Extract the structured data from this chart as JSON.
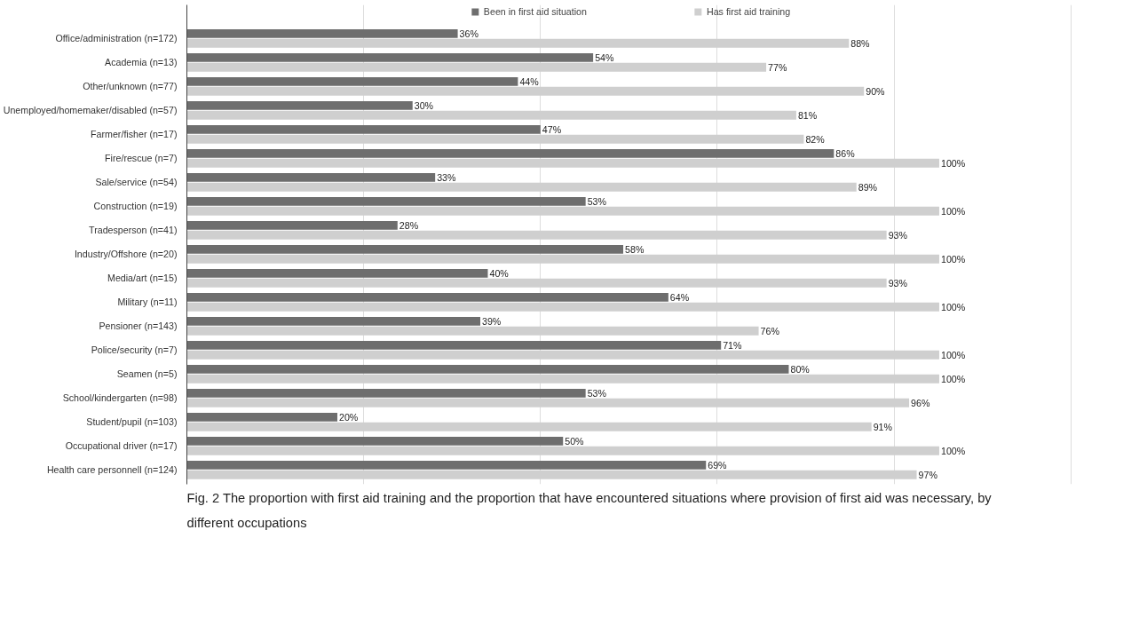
{
  "chart_data": {
    "type": "bar",
    "orientation": "horizontal",
    "categories": [
      "Office/administration (n=172)",
      "Academia (n=13)",
      "Other/unknown (n=77)",
      "Unemployed/homemaker/disabled (n=57)",
      "Farmer/fisher (n=17)",
      "Fire/rescue (n=7)",
      "Sale/service (n=54)",
      "Construction (n=19)",
      "Tradesperson (n=41)",
      "Industry/Offshore (n=20)",
      "Media/art (n=15)",
      "Military (n=11)",
      "Pensioner (n=143)",
      "Police/security (n=7)",
      "Seamen (n=5)",
      "School/kindergarten (n=98)",
      "Student/pupil (n=103)",
      "Occupational driver (n=17)",
      "Health care personnell (n=124)"
    ],
    "series": [
      {
        "name": "Been in first aid situation",
        "color": "#6e6e6e",
        "values": [
          36,
          54,
          44,
          30,
          47,
          86,
          33,
          53,
          28,
          58,
          40,
          64,
          39,
          71,
          80,
          53,
          20,
          50,
          69
        ],
        "value_labels": [
          "36%",
          "54%",
          "44%",
          "30%",
          "47%",
          "86%",
          "33%",
          "53%",
          "28%",
          "58%",
          "40%",
          "64%",
          "39%",
          "71%",
          "80%",
          "53%",
          "20%",
          "50%",
          "69%"
        ]
      },
      {
        "name": "Has first aid training",
        "color": "#cfcfcf",
        "values": [
          88,
          77,
          90,
          81,
          82,
          100,
          89,
          100,
          93,
          100,
          93,
          100,
          76,
          100,
          100,
          96,
          91,
          100,
          97
        ],
        "value_labels": [
          "88%",
          "77%",
          "90%",
          "81%",
          "82%",
          "100%",
          "89%",
          "100%",
          "93%",
          "100%",
          "93%",
          "100%",
          "76%",
          "100%",
          "100%",
          "96%",
          "91%",
          "100%",
          "97%"
        ]
      }
    ],
    "xlim": [
      0,
      118
    ],
    "xticks": [
      {
        "value": 0,
        "label": null
      },
      {
        "value": 23.5,
        "label": null
      },
      {
        "value": 47,
        "label": null
      },
      {
        "value": 70.5,
        "label": null
      },
      {
        "value": 94,
        "label": null
      },
      {
        "value": 117.5,
        "label": null
      }
    ],
    "tick_labels": "y",
    "grid": "x",
    "legend": "top",
    "annotations": [
      "Fig. 2 The proportion with first aid training and the proportion that have encountered situations where provision of first aid was necessary, by different occupations"
    ]
  }
}
